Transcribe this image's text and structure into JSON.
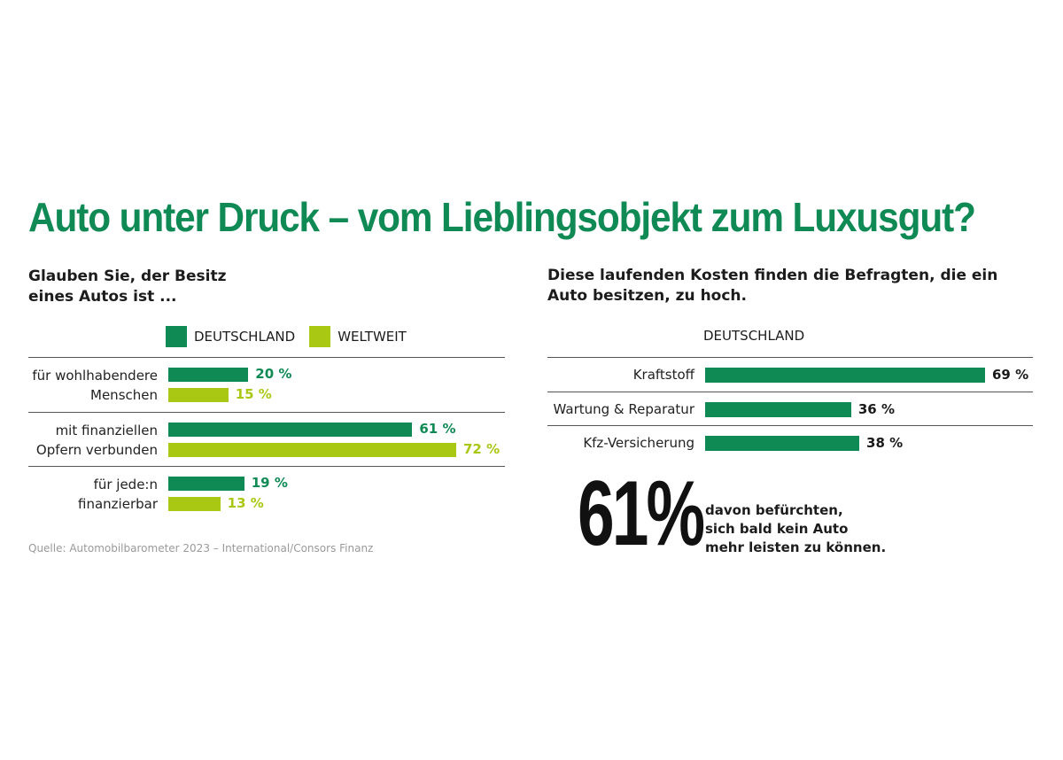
{
  "title": "Auto unter Druck – vom Lieblingsobjekt zum Luxusgut?",
  "source": "Quelle: Automobilbarometer 2023 – International/Consors Finanz",
  "colors": {
    "deutschland": "#0f8a55",
    "weltweit": "#a8c814",
    "title": "#0f8a55"
  },
  "chart_data": [
    {
      "type": "bar",
      "orientation": "horizontal",
      "title_lines": [
        "Glauben Sie, der Besitz",
        "eines Autos ist ..."
      ],
      "legend": [
        "DEUTSCHLAND",
        "WELTWEIT"
      ],
      "legend_placement": "top",
      "categories": [
        [
          "für wohlhabendere",
          "Menschen"
        ],
        [
          "mit finanziellen",
          "Opfern verbunden"
        ],
        [
          "für jede:n",
          "finanzierbar"
        ]
      ],
      "series": [
        {
          "name": "DEUTSCHLAND",
          "values": [
            20,
            61,
            19
          ],
          "labels": [
            "20 %",
            "61 %",
            "19 %"
          ]
        },
        {
          "name": "WELTWEIT",
          "values": [
            15,
            72,
            13
          ],
          "labels": [
            "15 %",
            "72 %",
            "13 %"
          ]
        }
      ],
      "unit": "%"
    },
    {
      "type": "bar",
      "orientation": "horizontal",
      "title_lines": [
        "Diese laufenden Kosten finden die Befragten, die ein",
        "Auto besitzen, zu hoch."
      ],
      "legend": [
        "DEUTSCHLAND"
      ],
      "categories": [
        "Kraftstoff",
        "Wartung & Reparatur",
        "Kfz-Versicherung"
      ],
      "series": [
        {
          "name": "DEUTSCHLAND",
          "values": [
            69,
            36,
            38
          ],
          "labels": [
            "69 %",
            "36 %",
            "38 %"
          ]
        }
      ],
      "unit": "%"
    }
  ],
  "highlight": {
    "number": "61%",
    "caption_lines": [
      "davon befürchten,",
      "sich bald kein Auto",
      "mehr leisten zu können."
    ]
  }
}
